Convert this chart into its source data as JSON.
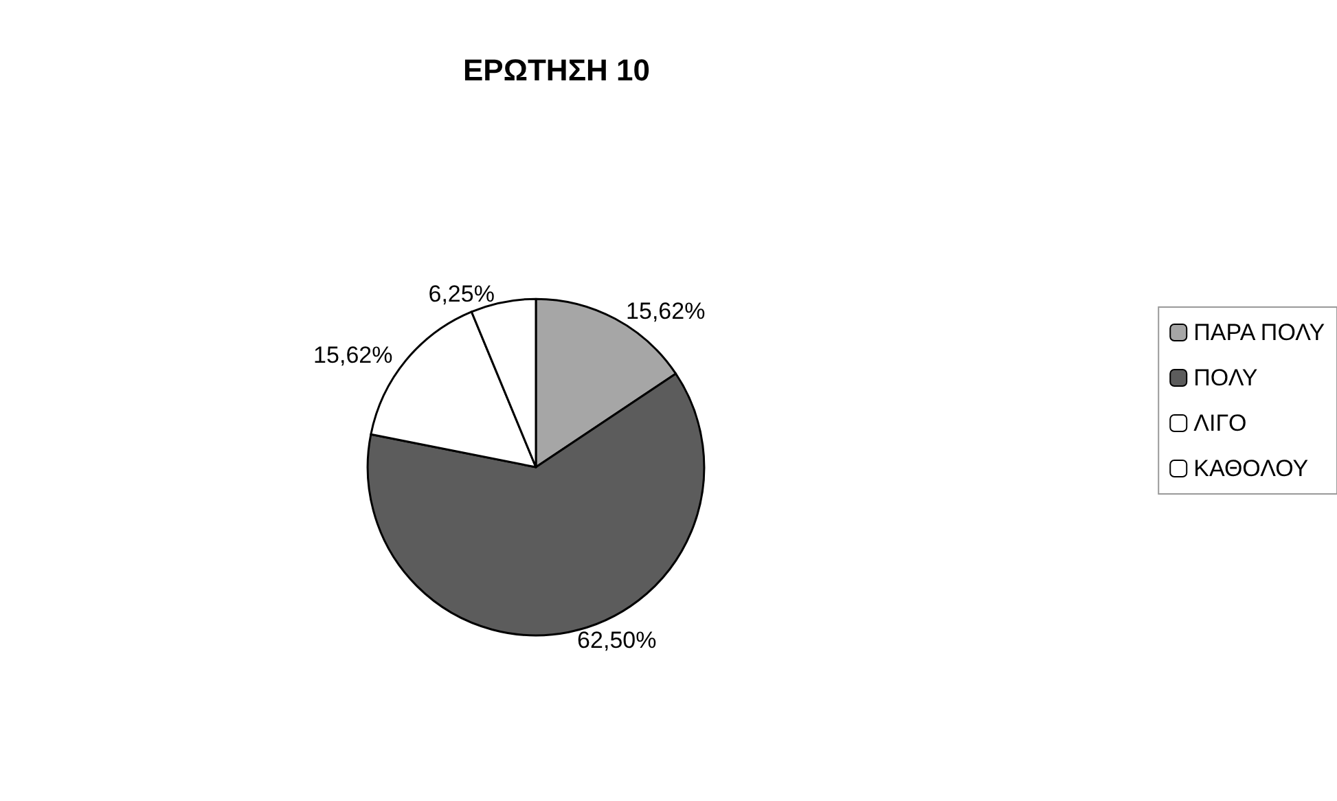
{
  "chart_data": {
    "type": "pie",
    "title": "ΕΡΩΤΗΣΗ 10",
    "categories": [
      "ΠΑΡΑ ΠΟΛΥ",
      "ΠΟΛΥ",
      "ΛΙΓΟ",
      "ΚΑΘΟΛΟΥ"
    ],
    "values": [
      15.62,
      62.5,
      15.62,
      6.25
    ],
    "colors": [
      "#a6a6a6",
      "#5c5c5c",
      "#ffffff",
      "#ffffff"
    ],
    "value_labels": [
      "15,62%",
      "62,50%",
      "15,62%",
      "6,25%"
    ],
    "legend": "right"
  }
}
